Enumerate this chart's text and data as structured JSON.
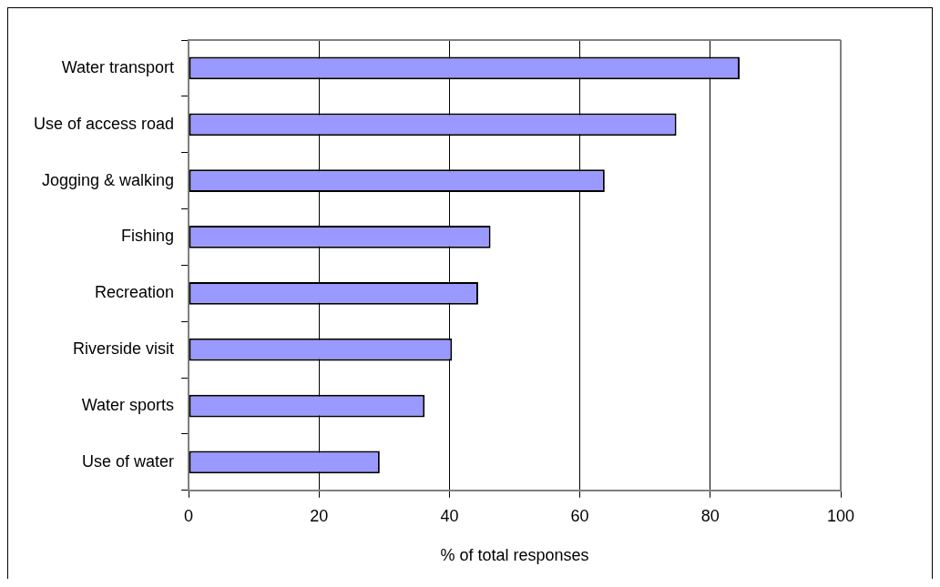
{
  "chart_data": {
    "type": "bar",
    "orientation": "horizontal",
    "xlabel": "% of total responses",
    "categories": [
      "Water transport",
      "Use of access road",
      "Jogging & walking",
      "Fishing",
      "Recreation",
      "Riverside visit",
      "Water sports",
      "Use of water"
    ],
    "values": [
      84.5,
      74.8,
      63.8,
      46.3,
      44.4,
      40.4,
      36.2,
      29.3
    ],
    "color": "#9999ff",
    "xlim": [
      0,
      100
    ],
    "xticks": [
      0,
      20,
      40,
      60,
      80,
      100
    ],
    "grid": "x",
    "legend": false
  }
}
